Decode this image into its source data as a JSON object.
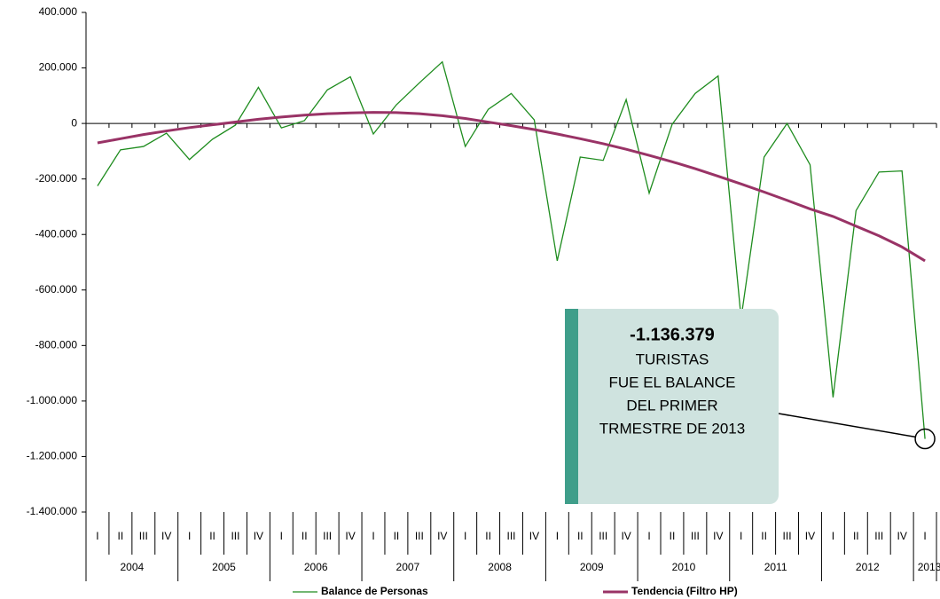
{
  "chart_data": {
    "type": "line",
    "categories": [
      "I",
      "II",
      "III",
      "IV",
      "I",
      "II",
      "III",
      "IV",
      "I",
      "II",
      "III",
      "IV",
      "I",
      "II",
      "III",
      "IV",
      "I",
      "II",
      "III",
      "IV",
      "I",
      "II",
      "III",
      "IV",
      "I",
      "II",
      "III",
      "IV",
      "I",
      "II",
      "III",
      "IV",
      "I",
      "II",
      "III",
      "IV",
      "I"
    ],
    "years": [
      "2004",
      "2005",
      "2006",
      "2007",
      "2008",
      "2009",
      "2010",
      "2011",
      "2012",
      "2013"
    ],
    "series": [
      {
        "name": "Balance de Personas",
        "color": "#1e8c1e",
        "values": [
          -225000,
          -95000,
          -83000,
          -35000,
          -130000,
          -57000,
          -6000,
          130000,
          -16000,
          10000,
          121000,
          168000,
          -38000,
          67000,
          146000,
          222000,
          -83000,
          51000,
          108000,
          13000,
          -495000,
          -121000,
          -133000,
          86000,
          -251000,
          -3000,
          108000,
          171000,
          -702000,
          -121000,
          0,
          -149000,
          -987000,
          -314000,
          -175000,
          -171000,
          -1136379
        ]
      },
      {
        "name": "Tendencia (Filtro HP)",
        "color": "#993366",
        "values": [
          -70000,
          -55000,
          -40000,
          -27000,
          -15000,
          -5000,
          5000,
          15000,
          23000,
          30000,
          35000,
          38000,
          40000,
          39000,
          35000,
          28000,
          18000,
          5000,
          -8000,
          -22000,
          -38000,
          -55000,
          -73000,
          -93000,
          -115000,
          -138000,
          -163000,
          -190000,
          -218000,
          -247000,
          -277000,
          -308000,
          -335000,
          -370000,
          -405000,
          -445000,
          -495000
        ]
      }
    ],
    "ylim": [
      -1400000,
      400000
    ],
    "yticks": [
      {
        "value": -1400000,
        "label": "-1.400.000"
      },
      {
        "value": -1200000,
        "label": "-1.200.000"
      },
      {
        "value": -1000000,
        "label": "-1.000.000"
      },
      {
        "value": -800000,
        "label": "-800.000"
      },
      {
        "value": -600000,
        "label": "-600.000"
      },
      {
        "value": -400000,
        "label": "-400.000"
      },
      {
        "value": -200000,
        "label": "-200.000"
      },
      0,
      {
        "value": 200000,
        "label": "200.000"
      },
      {
        "value": 400000,
        "label": "400.000"
      }
    ],
    "annotation": {
      "title": "-1.136.379",
      "lines": [
        "TURISTAS",
        "FUE EL BALANCE",
        "DEL PRIMER",
        "TRMESTRE DE 2013"
      ]
    },
    "legend": "bottom"
  }
}
